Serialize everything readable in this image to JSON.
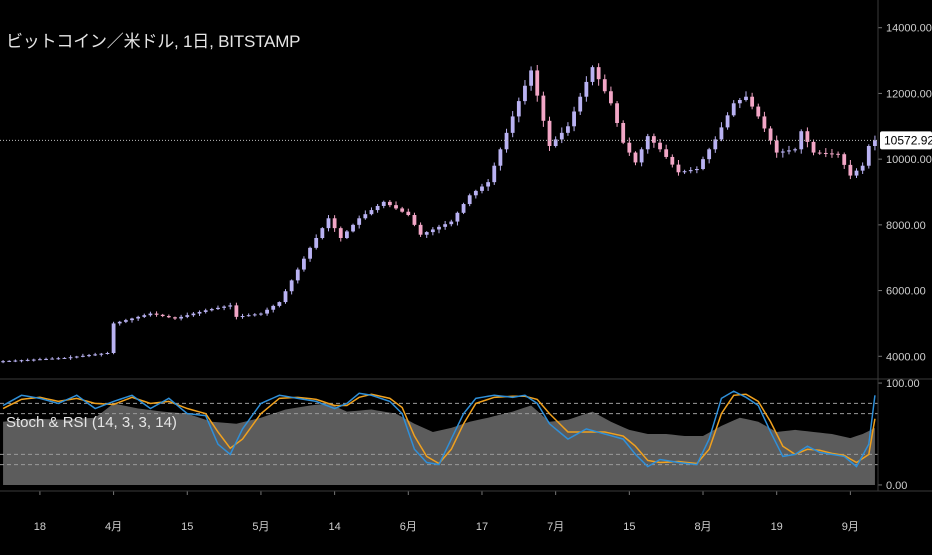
{
  "title": "ビットコイン／米ドル, 1日, BITSTAMP",
  "indicator_label": "Stoch & RSI (14, 3, 3, 14)",
  "colors": {
    "background": "#000000",
    "candle_up": "#b9b2f2",
    "candle_down": "#f2a6c6",
    "stoch_k": "#2f8fd8",
    "stoch_d": "#f0a11e",
    "rsi_fill": "#5c5c5c",
    "axis_text": "#cfcfcf",
    "dashed": "#9a9a9a",
    "badge_bg": "#ffffff"
  },
  "last_price_label": "10572.92",
  "chart_data": [
    {
      "type": "candlestick",
      "title": "ビットコイン／米ドル, 1日, BITSTAMP",
      "y_ticks": [
        "14000.00",
        "12000.00",
        "10000.00",
        "8000.00",
        "6000.00",
        "4000.00"
      ],
      "y_tick_values": [
        14000,
        12000,
        10000,
        8000,
        6000,
        4000
      ],
      "ylim": [
        3400,
        14600
      ],
      "last_price": 10572.92,
      "x_ticks": [
        "18",
        "4月",
        "15",
        "5月",
        "14",
        "6月",
        "17",
        "7月",
        "15",
        "8月",
        "19",
        "9月"
      ],
      "x_tick_index": [
        6,
        18,
        30,
        42,
        54,
        66,
        78,
        90,
        102,
        114,
        126,
        138
      ],
      "close_anchors": [
        [
          0,
          3850
        ],
        [
          10,
          3950
        ],
        [
          17,
          4100
        ],
        [
          18,
          5000
        ],
        [
          24,
          5300
        ],
        [
          28,
          5150
        ],
        [
          33,
          5400
        ],
        [
          37,
          5550
        ],
        [
          38,
          5200
        ],
        [
          42,
          5300
        ],
        [
          45,
          5650
        ],
        [
          50,
          7300
        ],
        [
          53,
          8200
        ],
        [
          55,
          7600
        ],
        [
          58,
          8200
        ],
        [
          62,
          8700
        ],
        [
          66,
          8300
        ],
        [
          68,
          7700
        ],
        [
          73,
          8100
        ],
        [
          76,
          8900
        ],
        [
          79,
          9300
        ],
        [
          83,
          11300
        ],
        [
          86,
          12700
        ],
        [
          89,
          10400
        ],
        [
          92,
          11000
        ],
        [
          96,
          12800
        ],
        [
          99,
          11700
        ],
        [
          101,
          10500
        ],
        [
          103,
          9900
        ],
        [
          105,
          10700
        ],
        [
          107,
          10300
        ],
        [
          110,
          9600
        ],
        [
          113,
          9700
        ],
        [
          116,
          10600
        ],
        [
          119,
          11700
        ],
        [
          121,
          11900
        ],
        [
          123,
          11300
        ],
        [
          126,
          10200
        ],
        [
          129,
          10300
        ],
        [
          130,
          10850
        ],
        [
          132,
          10200
        ],
        [
          136,
          10150
        ],
        [
          138,
          9500
        ],
        [
          140,
          9800
        ],
        [
          141,
          10400
        ],
        [
          142,
          10572.92
        ]
      ]
    },
    {
      "type": "stochastic_rsi",
      "title": "Stoch & RSI (14, 3, 3, 14)",
      "y_ticks": [
        "100.00",
        "0.00"
      ],
      "ylim": [
        -3,
        103
      ],
      "bands": [
        80,
        70,
        30,
        20
      ],
      "k_anchors": [
        [
          0,
          78
        ],
        [
          3,
          88
        ],
        [
          6,
          85
        ],
        [
          9,
          80
        ],
        [
          12,
          88
        ],
        [
          15,
          75
        ],
        [
          18,
          82
        ],
        [
          21,
          88
        ],
        [
          24,
          75
        ],
        [
          27,
          85
        ],
        [
          30,
          70
        ],
        [
          33,
          68
        ],
        [
          35,
          40
        ],
        [
          37,
          30
        ],
        [
          39,
          55
        ],
        [
          42,
          80
        ],
        [
          45,
          88
        ],
        [
          48,
          85
        ],
        [
          51,
          82
        ],
        [
          54,
          75
        ],
        [
          56,
          80
        ],
        [
          58,
          90
        ],
        [
          60,
          88
        ],
        [
          63,
          82
        ],
        [
          65,
          70
        ],
        [
          67,
          35
        ],
        [
          69,
          22
        ],
        [
          71,
          20
        ],
        [
          73,
          45
        ],
        [
          75,
          70
        ],
        [
          77,
          85
        ],
        [
          80,
          88
        ],
        [
          83,
          86
        ],
        [
          85,
          88
        ],
        [
          87,
          80
        ],
        [
          89,
          60
        ],
        [
          92,
          45
        ],
        [
          95,
          55
        ],
        [
          98,
          50
        ],
        [
          101,
          45
        ],
        [
          103,
          30
        ],
        [
          105,
          18
        ],
        [
          107,
          25
        ],
        [
          110,
          22
        ],
        [
          113,
          20
        ],
        [
          115,
          45
        ],
        [
          117,
          85
        ],
        [
          119,
          92
        ],
        [
          121,
          86
        ],
        [
          123,
          78
        ],
        [
          125,
          52
        ],
        [
          127,
          28
        ],
        [
          129,
          30
        ],
        [
          131,
          38
        ],
        [
          133,
          32
        ],
        [
          135,
          30
        ],
        [
          137,
          28
        ],
        [
          139,
          18
        ],
        [
          141,
          40
        ],
        [
          142,
          88
        ]
      ],
      "d_anchors": [
        [
          0,
          75
        ],
        [
          3,
          84
        ],
        [
          6,
          86
        ],
        [
          9,
          82
        ],
        [
          12,
          85
        ],
        [
          15,
          80
        ],
        [
          18,
          79
        ],
        [
          21,
          86
        ],
        [
          24,
          80
        ],
        [
          27,
          82
        ],
        [
          30,
          75
        ],
        [
          33,
          70
        ],
        [
          35,
          52
        ],
        [
          37,
          36
        ],
        [
          39,
          45
        ],
        [
          42,
          70
        ],
        [
          45,
          85
        ],
        [
          48,
          86
        ],
        [
          51,
          84
        ],
        [
          54,
          78
        ],
        [
          56,
          78
        ],
        [
          58,
          86
        ],
        [
          60,
          89
        ],
        [
          63,
          85
        ],
        [
          65,
          76
        ],
        [
          67,
          48
        ],
        [
          69,
          28
        ],
        [
          71,
          21
        ],
        [
          73,
          35
        ],
        [
          75,
          60
        ],
        [
          77,
          80
        ],
        [
          80,
          86
        ],
        [
          83,
          87
        ],
        [
          85,
          87
        ],
        [
          87,
          84
        ],
        [
          89,
          70
        ],
        [
          92,
          52
        ],
        [
          95,
          52
        ],
        [
          98,
          52
        ],
        [
          101,
          48
        ],
        [
          103,
          38
        ],
        [
          105,
          24
        ],
        [
          107,
          22
        ],
        [
          110,
          23
        ],
        [
          113,
          21
        ],
        [
          115,
          35
        ],
        [
          117,
          70
        ],
        [
          119,
          88
        ],
        [
          121,
          89
        ],
        [
          123,
          82
        ],
        [
          125,
          62
        ],
        [
          127,
          38
        ],
        [
          129,
          30
        ],
        [
          131,
          35
        ],
        [
          133,
          34
        ],
        [
          135,
          31
        ],
        [
          137,
          29
        ],
        [
          139,
          22
        ],
        [
          141,
          30
        ],
        [
          142,
          65
        ]
      ],
      "rsi_anchors": [
        [
          0,
          62
        ],
        [
          5,
          65
        ],
        [
          10,
          64
        ],
        [
          15,
          66
        ],
        [
          18,
          80
        ],
        [
          22,
          75
        ],
        [
          26,
          72
        ],
        [
          30,
          70
        ],
        [
          34,
          62
        ],
        [
          38,
          60
        ],
        [
          42,
          66
        ],
        [
          46,
          74
        ],
        [
          50,
          78
        ],
        [
          53,
          80
        ],
        [
          56,
          72
        ],
        [
          60,
          74
        ],
        [
          64,
          70
        ],
        [
          67,
          60
        ],
        [
          70,
          52
        ],
        [
          73,
          56
        ],
        [
          76,
          62
        ],
        [
          79,
          66
        ],
        [
          83,
          72
        ],
        [
          86,
          78
        ],
        [
          89,
          62
        ],
        [
          92,
          64
        ],
        [
          96,
          72
        ],
        [
          99,
          62
        ],
        [
          102,
          54
        ],
        [
          105,
          50
        ],
        [
          108,
          50
        ],
        [
          111,
          48
        ],
        [
          114,
          48
        ],
        [
          117,
          58
        ],
        [
          120,
          66
        ],
        [
          123,
          62
        ],
        [
          126,
          52
        ],
        [
          129,
          54
        ],
        [
          132,
          52
        ],
        [
          135,
          50
        ],
        [
          138,
          46
        ],
        [
          140,
          50
        ],
        [
          142,
          56
        ]
      ]
    }
  ]
}
